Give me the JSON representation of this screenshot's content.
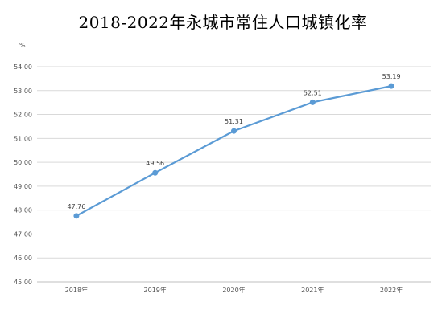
{
  "chart_data": {
    "type": "line",
    "title": "2018-2022年永城市常住人口城镇化率",
    "unit": "%",
    "categories": [
      "2018年",
      "2019年",
      "2020年",
      "2021年",
      "2022年"
    ],
    "series": [
      {
        "values": [
          47.76,
          49.56,
          51.31,
          52.51,
          53.19
        ]
      }
    ],
    "data_labels": [
      "47.76",
      "49.56",
      "51.31",
      "52.51",
      "53.19"
    ],
    "y_ticks": [
      "45.00",
      "46.00",
      "47.00",
      "48.00",
      "49.00",
      "50.00",
      "51.00",
      "52.00",
      "53.00",
      "54.00"
    ],
    "ylim": [
      45,
      54
    ],
    "grid": true,
    "legend": "none",
    "colors": {
      "line": "#5b9bd5",
      "grid": "#d9d9d9",
      "axis": "#bfbfbf"
    }
  }
}
